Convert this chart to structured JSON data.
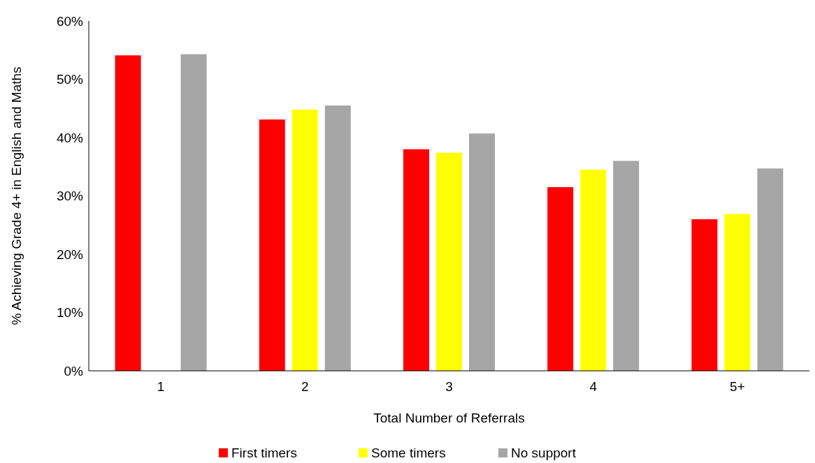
{
  "chart_data": {
    "type": "bar",
    "xlabel": "Total Number of Referrals",
    "ylabel": "% Achieving Grade 4+ in English and Maths",
    "categories": [
      "1",
      "2",
      "3",
      "4",
      "5+"
    ],
    "series": [
      {
        "name": "First timers",
        "color": "#ff0000",
        "values": [
          54.1,
          43.1,
          38.0,
          31.5,
          26.0
        ]
      },
      {
        "name": "Some timers",
        "color": "#ffff00",
        "values": [
          null,
          44.8,
          37.4,
          34.5,
          26.9
        ]
      },
      {
        "name": "No support",
        "color": "#a6a6a6",
        "values": [
          54.3,
          45.5,
          40.7,
          36.0,
          34.7
        ]
      }
    ],
    "ylim": [
      0,
      60
    ],
    "yticks": [
      {
        "value": 0,
        "label": "0%"
      },
      {
        "value": 10,
        "label": "10%"
      },
      {
        "value": 20,
        "label": "20%"
      },
      {
        "value": 30,
        "label": "30%"
      },
      {
        "value": 40,
        "label": "40%"
      },
      {
        "value": 50,
        "label": "50%"
      },
      {
        "value": 60,
        "label": "60%"
      }
    ],
    "legend": "bottom"
  }
}
